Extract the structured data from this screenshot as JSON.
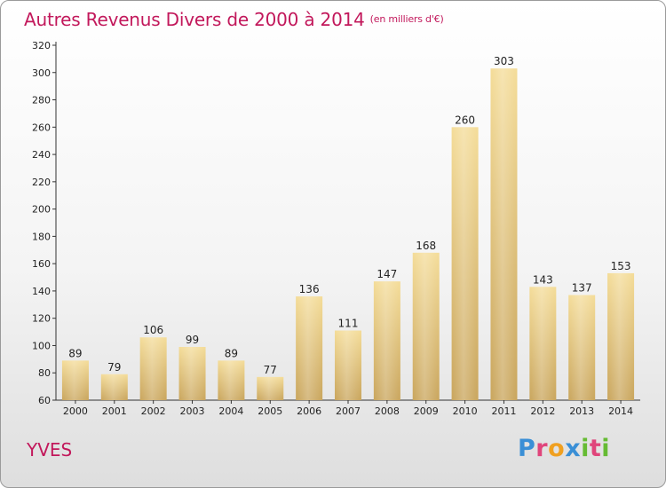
{
  "chart_data": {
    "type": "bar",
    "title": "Autres Revenus Divers de 2000 à 2014",
    "subtitle": "(en milliers d'€)",
    "categories": [
      "2000",
      "2001",
      "2002",
      "2003",
      "2004",
      "2005",
      "2006",
      "2007",
      "2008",
      "2009",
      "2010",
      "2011",
      "2012",
      "2013",
      "2014"
    ],
    "values": [
      89,
      79,
      106,
      99,
      89,
      77,
      136,
      111,
      147,
      168,
      260,
      303,
      143,
      137,
      153
    ],
    "ylim": [
      60,
      320
    ],
    "yticks": [
      60,
      80,
      100,
      120,
      140,
      160,
      180,
      200,
      220,
      240,
      260,
      280,
      300,
      320
    ],
    "grid": false,
    "bar_color": "#e8c97a",
    "title_color": "#c2185b"
  },
  "footer": {
    "place": "YVES",
    "logo_letters": [
      {
        "ch": "P",
        "color": "#3a8fd6"
      },
      {
        "ch": "r",
        "color": "#e0457b"
      },
      {
        "ch": "o",
        "color": "#f0a020"
      },
      {
        "ch": "x",
        "color": "#3a8fd6"
      },
      {
        "ch": "i",
        "color": "#66bb33"
      },
      {
        "ch": "t",
        "color": "#e0457b"
      },
      {
        "ch": "i",
        "color": "#66bb33"
      }
    ]
  }
}
